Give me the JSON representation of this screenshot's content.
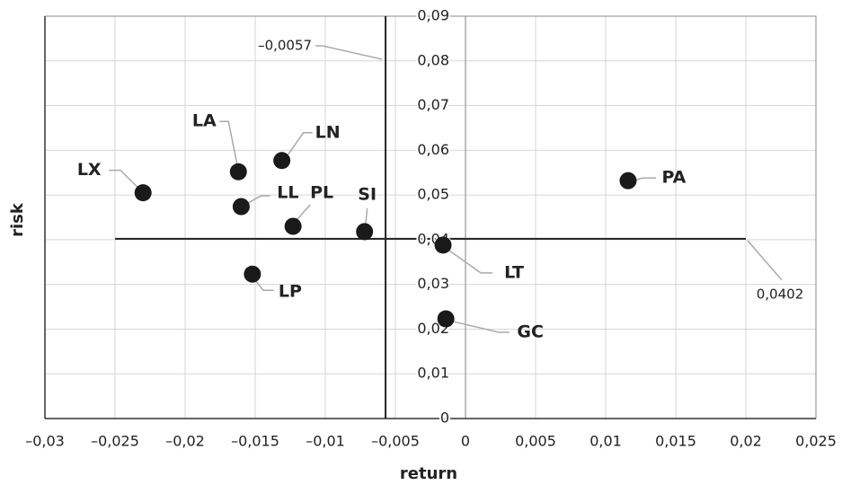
{
  "chart_data": {
    "type": "scatter",
    "x_label": "return",
    "y_label": "risk",
    "xlim": [
      -0.03,
      0.025
    ],
    "xticks": [
      {
        "value": -0.03,
        "label": "–0,03"
      },
      {
        "value": -0.025,
        "label": "–0,025"
      },
      {
        "value": -0.02,
        "label": "–0,02"
      },
      {
        "value": -0.015,
        "label": "–0,015"
      },
      {
        "value": -0.01,
        "label": "–0,01"
      },
      {
        "value": -0.005,
        "label": "–0,005"
      },
      0,
      {
        "value": 0.005,
        "label": "0,005"
      },
      {
        "value": 0.01,
        "label": "0,01"
      },
      {
        "value": 0.015,
        "label": "0,015"
      },
      {
        "value": 0.02,
        "label": "0,02"
      },
      {
        "value": 0.025,
        "label": "0,025"
      }
    ],
    "ylim": [
      0,
      0.09
    ],
    "yticks": [
      0,
      {
        "value": 0.01,
        "label": "0,01"
      },
      {
        "value": 0.02,
        "label": "0,02"
      },
      {
        "value": 0.03,
        "label": "0,03"
      },
      {
        "value": 0.04,
        "label": "0,04"
      },
      {
        "value": 0.05,
        "label": "0,05"
      },
      {
        "value": 0.06,
        "label": "0,06"
      },
      {
        "value": 0.07,
        "label": "0,07"
      },
      {
        "value": 0.08,
        "label": "0,08"
      },
      {
        "value": 0.09,
        "label": "0,09"
      }
    ],
    "grid": true,
    "color": "#1a1a1a",
    "series": [
      {
        "labels": [
          "LX",
          "LA",
          "LN",
          "LL",
          "PL",
          "SI",
          "LT",
          "LP",
          "GC",
          "PA"
        ],
        "x": [
          -0.023,
          -0.0162,
          -0.0131,
          -0.016,
          -0.0123,
          -0.0072,
          -0.0016,
          -0.0152,
          -0.0014,
          0.0116
        ],
        "values": [
          0.0505,
          0.0552,
          0.0577,
          0.0474,
          0.043,
          0.0418,
          0.0388,
          0.0323,
          0.0223,
          0.0532
        ]
      }
    ],
    "reference_lines": {
      "vertical": {
        "value": -0.0057,
        "label": "–0,0057"
      },
      "horizontal": {
        "value": 0.0402,
        "label": "0,0402",
        "xrange": [
          -0.025,
          0.02
        ]
      }
    }
  }
}
